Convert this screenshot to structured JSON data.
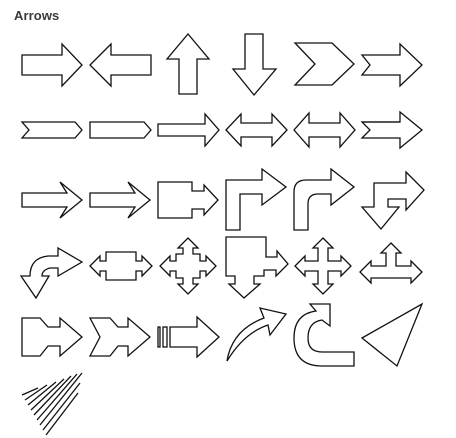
{
  "gallery": {
    "title": "Arrows",
    "colors": {
      "outline": "#111111",
      "fill": "#ffffff",
      "heading": "#3a3a3a"
    },
    "shapes": [
      "right-arrow",
      "left-arrow",
      "up-arrow",
      "down-arrow",
      "chevron-right",
      "notched-right-arrow",
      "pentagon-chevron",
      "pentagon-block",
      "thin-right-arrow",
      "left-right-arrow",
      "wide-left-right-arrow",
      "striped-right-arrow",
      "long-right-arrow",
      "long-right-arrow-2",
      "right-arrow-callout",
      "bent-arrow",
      "rounded-bent-arrow",
      "bent-up-arrow",
      "curved-down-arrow",
      "left-right-callout",
      "four-way-callout",
      "down-arrow-callout",
      "quad-arrow",
      "left-right-up-arrow",
      "chevron-tail-arrow",
      "chevron-double-arrow",
      "striped-block-arrow",
      "curved-right-arrow",
      "u-turn-arrow",
      "triangle-pointer",
      "hatched-arrow"
    ]
  }
}
